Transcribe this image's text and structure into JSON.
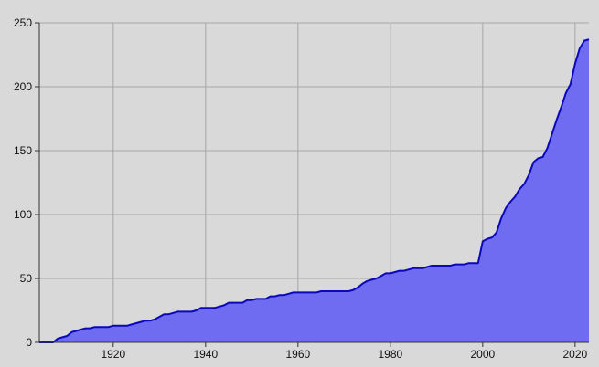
{
  "chart_data": {
    "type": "area",
    "title": "",
    "xlabel": "",
    "ylabel": "",
    "xlim": [
      1904,
      2023
    ],
    "ylim": [
      0,
      250
    ],
    "x_ticks": [
      1920,
      1940,
      1960,
      1980,
      2000,
      2020
    ],
    "y_ticks": [
      0,
      50,
      100,
      150,
      200,
      250
    ],
    "grid": true,
    "legend": "none",
    "colors": {
      "background": "#d9d9d9",
      "grid": "#a6a6a6",
      "fill": "#6f6cf2",
      "line": "#0a08b8",
      "text": "#111111"
    },
    "x": [
      1904,
      1907,
      1908,
      1909,
      1910,
      1911,
      1912,
      1913,
      1914,
      1915,
      1916,
      1917,
      1918,
      1919,
      1920,
      1921,
      1922,
      1923,
      1924,
      1925,
      1926,
      1927,
      1928,
      1929,
      1930,
      1931,
      1932,
      1933,
      1934,
      1935,
      1936,
      1937,
      1938,
      1939,
      1940,
      1941,
      1942,
      1943,
      1944,
      1945,
      1946,
      1947,
      1948,
      1949,
      1950,
      1951,
      1952,
      1953,
      1954,
      1955,
      1956,
      1957,
      1958,
      1959,
      1960,
      1962,
      1964,
      1965,
      1966,
      1968,
      1970,
      1971,
      1972,
      1973,
      1974,
      1975,
      1976,
      1977,
      1978,
      1979,
      1980,
      1981,
      1982,
      1983,
      1984,
      1985,
      1986,
      1987,
      1988,
      1989,
      1990,
      1991,
      1992,
      1993,
      1994,
      1995,
      1996,
      1997,
      1998,
      1999,
      2000,
      2001,
      2002,
      2003,
      2004,
      2005,
      2006,
      2007,
      2008,
      2009,
      2010,
      2011,
      2012,
      2013,
      2014,
      2015,
      2016,
      2017,
      2018,
      2019,
      2020,
      2021,
      2022,
      2023
    ],
    "y": [
      0,
      0,
      3,
      4,
      5,
      8,
      9,
      10,
      11,
      11,
      12,
      12,
      12,
      12,
      13,
      13,
      13,
      13,
      14,
      15,
      16,
      17,
      17,
      18,
      20,
      22,
      22,
      23,
      24,
      24,
      24,
      24,
      25,
      27,
      27,
      27,
      27,
      28,
      29,
      31,
      31,
      31,
      31,
      33,
      33,
      34,
      34,
      34,
      36,
      36,
      37,
      37,
      38,
      39,
      39,
      39,
      39,
      40,
      40,
      40,
      40,
      40,
      41,
      43,
      46,
      48,
      49,
      50,
      52,
      54,
      54,
      55,
      56,
      56,
      57,
      58,
      58,
      58,
      59,
      60,
      60,
      60,
      60,
      60,
      61,
      61,
      61,
      62,
      62,
      62,
      79,
      81,
      82,
      86,
      97,
      105,
      110,
      114,
      120,
      124,
      131,
      141,
      144,
      145,
      152,
      163,
      174,
      184,
      195,
      202,
      218,
      230,
      236,
      237
    ]
  }
}
